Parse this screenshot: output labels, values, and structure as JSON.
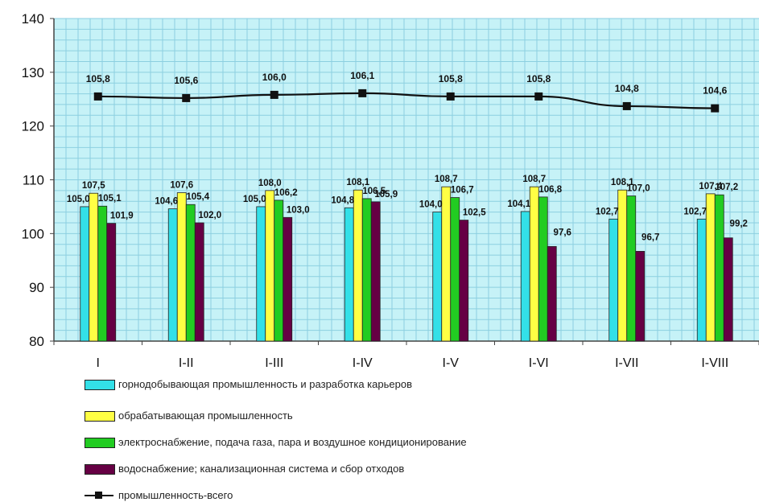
{
  "chart_data": {
    "type": "bar",
    "categories": [
      "I",
      "I-II",
      "I-III",
      "I-IV",
      "I-V",
      "I-VI",
      "I-VII",
      "I-VIII"
    ],
    "ylim": [
      80,
      140
    ],
    "yticks": [
      80,
      90,
      100,
      110,
      120,
      130,
      140
    ],
    "grid": true,
    "legend_position": "bottom",
    "series": [
      {
        "name": "горнодобывающая промышленность и разработка карьеров",
        "color": "#33e0e8",
        "values": [
          105.0,
          104.6,
          105.0,
          104.8,
          104.0,
          104.1,
          102.7,
          102.7
        ],
        "labels": [
          "105,0",
          "104,6",
          "105,0",
          "104,8",
          "104,0",
          "104,1",
          "102,7",
          "102,7"
        ]
      },
      {
        "name": "обрабатывающая промышленность",
        "color": "#ffff44",
        "values": [
          107.5,
          107.6,
          108.0,
          108.1,
          108.7,
          108.7,
          108.1,
          107.4
        ],
        "labels": [
          "107,5",
          "107,6",
          "108,0",
          "108,1",
          "108,7",
          "108,7",
          "108,1",
          "107,4"
        ]
      },
      {
        "name": "электроснабжение, подача газа, пара и воздушное кондиционирование",
        "color": "#22cc22",
        "values": [
          105.1,
          105.4,
          106.2,
          106.5,
          106.7,
          106.8,
          107.0,
          107.2
        ],
        "labels": [
          "105,1",
          "105,4",
          "106,2",
          "106,5",
          "106,7",
          "106,8",
          "107,0",
          "107,2"
        ]
      },
      {
        "name": "водоснабжение; канализационная система и сбор отходов",
        "color": "#660044",
        "values": [
          101.9,
          102.0,
          103.0,
          105.9,
          102.5,
          97.6,
          96.7,
          99.2
        ],
        "labels": [
          "101,9",
          "102,0",
          "103,0",
          "105,9",
          "102,5",
          "97,6",
          "96,7",
          "99,2"
        ]
      }
    ],
    "line_series": {
      "name": "промышленность-всего",
      "color": "#111111",
      "values": [
        105.8,
        105.6,
        106.0,
        106.1,
        105.8,
        105.8,
        104.8,
        104.6
      ],
      "plot_values": [
        125.5,
        125.2,
        125.8,
        126.1,
        125.5,
        125.5,
        123.7,
        123.3
      ],
      "labels": [
        "105,8",
        "105,6",
        "106,0",
        "106,1",
        "105,8",
        "105,8",
        "104,8",
        "104,6"
      ]
    }
  }
}
